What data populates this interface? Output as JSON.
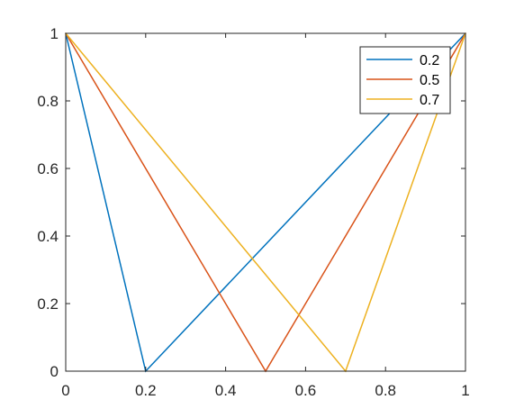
{
  "chart_data": {
    "type": "line",
    "title": "",
    "xlabel": "",
    "ylabel": "",
    "xlim": [
      0,
      1
    ],
    "ylim": [
      0,
      1
    ],
    "x_ticks": [
      0,
      0.2,
      0.4,
      0.6,
      0.8,
      1
    ],
    "x_tick_labels": [
      "0",
      "0.2",
      "0.4",
      "0.6",
      "0.8",
      "1"
    ],
    "y_ticks": [
      0,
      0.2,
      0.4,
      0.6,
      0.8,
      1
    ],
    "y_tick_labels": [
      "0",
      "0.2",
      "0.4",
      "0.6",
      "0.8",
      "1"
    ],
    "grid": false,
    "legend_position": "top-right",
    "series": [
      {
        "name": "0.2",
        "color": "#0072BD",
        "x": [
          0,
          0.2,
          1
        ],
        "y": [
          1,
          0,
          1
        ]
      },
      {
        "name": "0.5",
        "color": "#D95319",
        "x": [
          0,
          0.5,
          1
        ],
        "y": [
          1,
          0,
          1
        ]
      },
      {
        "name": "0.7",
        "color": "#EDB120",
        "x": [
          0,
          0.7,
          1
        ],
        "y": [
          1,
          0,
          1
        ]
      }
    ]
  }
}
